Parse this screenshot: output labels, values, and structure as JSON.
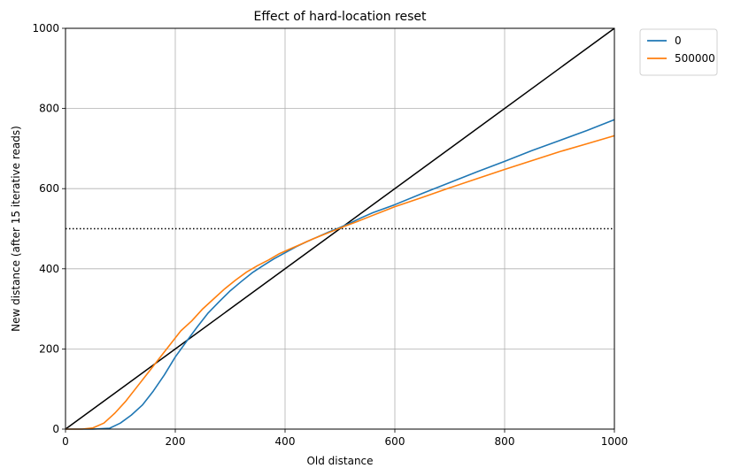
{
  "chart_data": {
    "type": "line",
    "title": "Effect of hard-location reset",
    "xlabel": "Old distance",
    "ylabel": "New distance (after 15 iterative reads)",
    "xlim": [
      0,
      1000
    ],
    "ylim": [
      0,
      1000
    ],
    "xticks": [
      0,
      200,
      400,
      600,
      800,
      1000
    ],
    "yticks": [
      0,
      200,
      400,
      600,
      800,
      1000
    ],
    "grid": true,
    "legend_position": "outside-top-right",
    "series": [
      {
        "name": "0",
        "color": "#1f77b4",
        "x": [
          0,
          50,
          80,
          100,
          120,
          140,
          160,
          180,
          200,
          220,
          240,
          260,
          280,
          300,
          320,
          340,
          360,
          380,
          400,
          420,
          440,
          460,
          480,
          500,
          520,
          540,
          560,
          580,
          600,
          650,
          700,
          750,
          800,
          850,
          900,
          950,
          1000
        ],
        "y": [
          0,
          0,
          2,
          15,
          35,
          60,
          95,
          135,
          180,
          218,
          255,
          290,
          318,
          345,
          368,
          390,
          408,
          425,
          440,
          455,
          468,
          480,
          492,
          503,
          515,
          528,
          540,
          550,
          560,
          588,
          615,
          642,
          668,
          695,
          720,
          745,
          772
        ]
      },
      {
        "name": "500000",
        "color": "#ff7f0e",
        "x": [
          0,
          30,
          50,
          70,
          90,
          110,
          130,
          150,
          170,
          190,
          210,
          230,
          250,
          270,
          290,
          310,
          330,
          350,
          370,
          390,
          410,
          430,
          450,
          470,
          490,
          510,
          530,
          550,
          600,
          650,
          700,
          750,
          800,
          850,
          900,
          950,
          1000
        ],
        "y": [
          0,
          0,
          3,
          15,
          40,
          70,
          105,
          140,
          175,
          210,
          245,
          270,
          300,
          325,
          350,
          372,
          392,
          408,
          422,
          438,
          450,
          462,
          474,
          485,
          496,
          507,
          517,
          528,
          555,
          578,
          602,
          625,
          648,
          670,
          692,
          712,
          732
        ]
      }
    ],
    "reference_lines": [
      {
        "kind": "diagonal",
        "style": "solid",
        "color": "#000000",
        "from": [
          0,
          0
        ],
        "to": [
          1000,
          1000
        ]
      },
      {
        "kind": "horizontal",
        "style": "dotted",
        "color": "#000000",
        "y": 500
      }
    ]
  }
}
